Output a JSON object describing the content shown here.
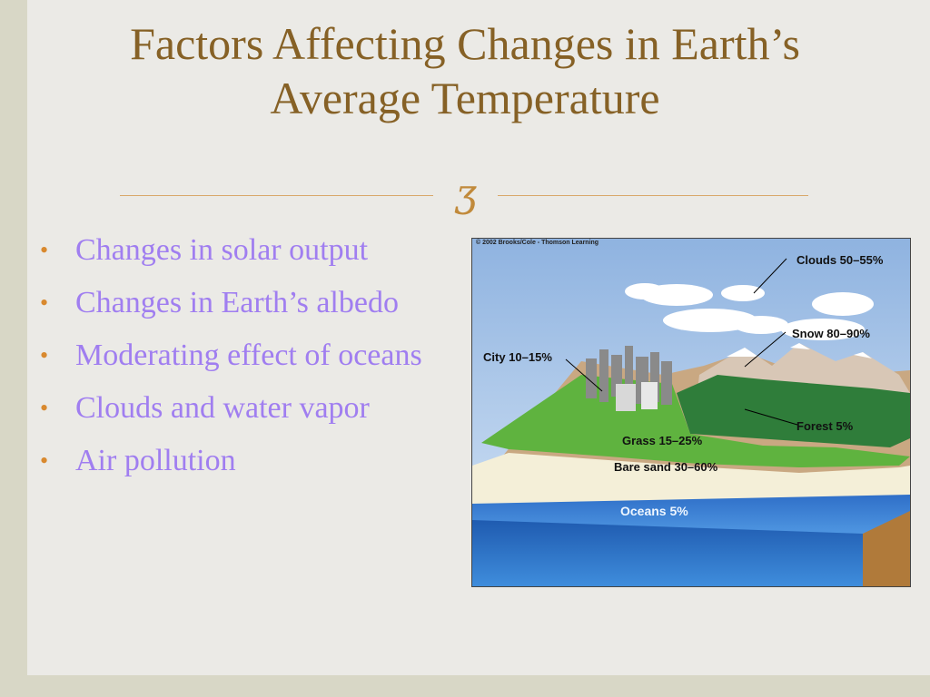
{
  "slide": {
    "title_line1": "Factors Affecting Changes in Earth’s",
    "title_line2": "Average Temperature",
    "bullets": [
      "Changes in solar output",
      "Changes in Earth’s albedo",
      "Moderating effect of oceans",
      "Clouds and water vapor",
      "Air pollution"
    ],
    "bullet_glyph": "•",
    "flourish_glyph": "ʒ"
  },
  "figure": {
    "credit": "© 2002 Brooks/Cole - Thomson Learning",
    "labels": {
      "clouds": "Clouds 50–55%",
      "snow": "Snow 80–90%",
      "city": "City 10–15%",
      "forest": "Forest 5%",
      "grass": "Grass 15–25%",
      "sand": "Bare sand 30–60%",
      "oceans": "Oceans  5%"
    }
  },
  "colors": {
    "title": "#866126",
    "bullet_text": "#a07ef0",
    "bullet_dot": "#d9892e",
    "divider": "#d9a86a"
  }
}
